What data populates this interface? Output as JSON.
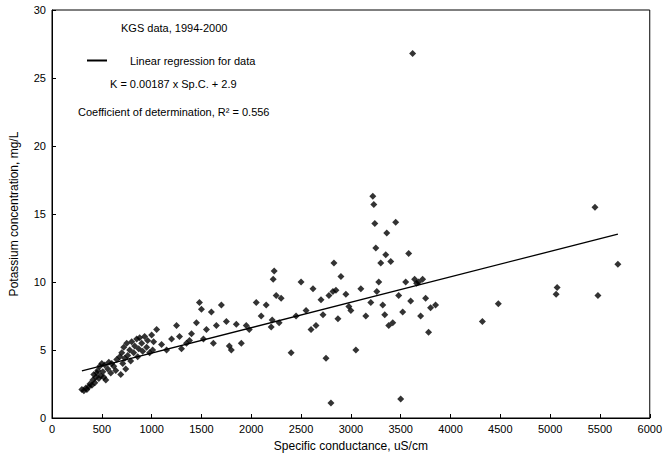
{
  "chart_data": {
    "type": "scatter",
    "x_label": "Specific conductance, uS/cm",
    "y_label": "Potassium concentration, mg/L",
    "annotations": [
      "KGS data, 1994-2000",
      "K = 0.00187 x Sp.C. + 2.9",
      "Coefficient of determination, R² = 0.556"
    ],
    "xlim": [
      0,
      6000
    ],
    "xticks": [
      0,
      500,
      1000,
      1500,
      2000,
      2500,
      3000,
      3500,
      4000,
      4500,
      5000,
      5500,
      6000
    ],
    "ylim": [
      0,
      30
    ],
    "yticks": [
      0,
      5,
      10,
      15,
      20,
      25,
      30
    ],
    "grid": false,
    "legend": "upper left",
    "series": [
      {
        "type": "scatter",
        "marker": "diamond",
        "color": "#000000",
        "x": [
          300,
          320,
          340,
          350,
          370,
          380,
          400,
          410,
          420,
          430,
          440,
          450,
          460,
          470,
          480,
          490,
          500,
          510,
          520,
          530,
          540,
          560,
          570,
          590,
          600,
          620,
          640,
          650,
          680,
          690,
          700,
          710,
          720,
          730,
          740,
          750,
          760,
          780,
          790,
          800,
          820,
          830,
          850,
          860,
          870,
          880,
          900,
          910,
          930,
          950,
          960,
          980,
          1000,
          1010,
          1020,
          1050,
          1100,
          1150,
          1200,
          1250,
          1280,
          1300,
          1350,
          1380,
          1400,
          1450,
          1480,
          1500,
          1520,
          1550,
          1600,
          1620,
          1650,
          1700,
          1750,
          1780,
          1800,
          1850,
          1900,
          1950,
          1980,
          2050,
          2100,
          2150,
          2200,
          2210,
          2220,
          2230,
          2250,
          2280,
          2300,
          2400,
          2450,
          2500,
          2550,
          2600,
          2620,
          2650,
          2700,
          2720,
          2750,
          2780,
          2800,
          2820,
          2830,
          2850,
          2870,
          2900,
          2950,
          2980,
          3000,
          3050,
          3100,
          3150,
          3200,
          3220,
          3230,
          3240,
          3250,
          3260,
          3280,
          3300,
          3320,
          3340,
          3350,
          3360,
          3380,
          3400,
          3420,
          3450,
          3480,
          3500,
          3520,
          3550,
          3580,
          3600,
          3620,
          3640,
          3660,
          3680,
          3700,
          3720,
          3750,
          3780,
          3800,
          3850,
          4320,
          4480,
          5060,
          5070,
          5450,
          5480,
          5680
        ],
        "values": [
          2.1,
          2.0,
          2.2,
          2.1,
          2.3,
          2.5,
          2.4,
          2.8,
          3.2,
          2.6,
          3.0,
          3.3,
          3.5,
          2.9,
          3.8,
          3.1,
          4.0,
          3.4,
          3.0,
          3.9,
          2.8,
          3.6,
          4.1,
          3.3,
          4.0,
          3.8,
          3.5,
          4.3,
          4.5,
          3.2,
          4.8,
          4.0,
          5.2,
          4.4,
          3.6,
          5.5,
          4.6,
          5.0,
          4.2,
          5.6,
          4.8,
          5.3,
          5.8,
          4.5,
          5.1,
          5.9,
          5.5,
          4.9,
          6.0,
          5.2,
          5.7,
          4.8,
          6.1,
          5.0,
          5.6,
          6.5,
          5.4,
          5.0,
          5.8,
          6.8,
          6.0,
          5.1,
          5.5,
          5.7,
          6.2,
          7.0,
          8.5,
          8.0,
          5.8,
          6.5,
          7.8,
          5.5,
          6.8,
          8.3,
          7.1,
          5.3,
          5.0,
          6.9,
          5.5,
          6.8,
          6.5,
          8.5,
          7.5,
          8.3,
          6.7,
          7.2,
          10.2,
          10.8,
          9.0,
          7.0,
          8.8,
          4.8,
          7.5,
          10.0,
          7.9,
          6.5,
          9.5,
          6.8,
          8.7,
          7.6,
          4.4,
          9.0,
          1.1,
          9.3,
          11.4,
          9.4,
          7.3,
          10.4,
          9.1,
          8.2,
          7.9,
          5.0,
          9.5,
          7.5,
          8.5,
          16.3,
          15.7,
          14.3,
          12.5,
          9.3,
          10.0,
          11.4,
          8.3,
          7.6,
          12.0,
          13.6,
          6.8,
          11.5,
          7.0,
          14.4,
          9.0,
          1.4,
          7.8,
          10.0,
          12.1,
          8.6,
          26.8,
          10.2,
          9.9,
          10.0,
          7.5,
          10.2,
          8.8,
          6.3,
          8.1,
          8.3,
          7.1,
          8.4,
          9.1,
          9.6,
          15.5,
          9.0,
          11.3
        ]
      },
      {
        "type": "line",
        "name": "Linear regression for data",
        "color": "#000000",
        "line_style": "solid",
        "x": [
          300,
          5680
        ],
        "values": [
          3.46,
          13.52
        ]
      }
    ]
  }
}
